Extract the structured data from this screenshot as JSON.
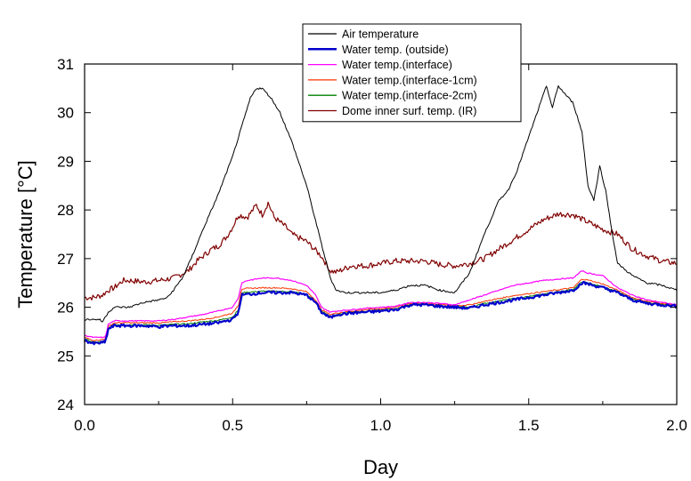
{
  "chart_data": {
    "type": "line",
    "title": "",
    "xlabel": "Day",
    "ylabel": "Temperature [°C]",
    "xlim": [
      0.0,
      2.0
    ],
    "ylim": [
      24,
      31
    ],
    "xticks": [
      0.0,
      0.5,
      1.0,
      1.5,
      2.0
    ],
    "xtick_labels": [
      "0.0",
      "0.5",
      "1.0",
      "1.5",
      "2.0"
    ],
    "yticks": [
      24,
      25,
      26,
      27,
      28,
      29,
      30,
      31
    ],
    "ytick_labels": [
      "24",
      "25",
      "26",
      "27",
      "28",
      "29",
      "30",
      "31"
    ],
    "grid": false,
    "legend_position": "top-center",
    "series": [
      {
        "name": "Air temperature",
        "color": "#000000",
        "width": 1,
        "x": [
          0.0,
          0.05,
          0.06,
          0.08,
          0.1,
          0.12,
          0.15,
          0.2,
          0.25,
          0.28,
          0.3,
          0.33,
          0.36,
          0.4,
          0.45,
          0.5,
          0.54,
          0.56,
          0.58,
          0.6,
          0.63,
          0.66,
          0.7,
          0.75,
          0.8,
          0.83,
          0.85,
          0.88,
          0.9,
          0.95,
          1.0,
          1.05,
          1.1,
          1.15,
          1.2,
          1.25,
          1.3,
          1.35,
          1.4,
          1.43,
          1.46,
          1.5,
          1.54,
          1.56,
          1.58,
          1.6,
          1.62,
          1.65,
          1.68,
          1.7,
          1.72,
          1.74,
          1.76,
          1.78,
          1.8,
          1.85,
          1.9,
          1.95,
          2.0
        ],
        "y": [
          25.75,
          25.75,
          25.7,
          25.9,
          26.0,
          26.0,
          26.0,
          26.1,
          26.15,
          26.2,
          26.35,
          26.6,
          27.0,
          27.6,
          28.3,
          29.1,
          29.9,
          30.3,
          30.5,
          30.5,
          30.3,
          30.0,
          29.4,
          28.5,
          27.3,
          26.6,
          26.35,
          26.3,
          26.3,
          26.3,
          26.3,
          26.35,
          26.45,
          26.45,
          26.35,
          26.3,
          26.7,
          27.5,
          28.2,
          28.4,
          28.8,
          29.5,
          30.2,
          30.55,
          30.1,
          30.55,
          30.4,
          30.2,
          29.6,
          28.5,
          28.2,
          28.9,
          28.4,
          27.6,
          26.9,
          26.65,
          26.5,
          26.45,
          26.35
        ]
      },
      {
        "name": "Water temp. (outside)",
        "color": "#0000cc",
        "width": 2.2,
        "x": [
          0.0,
          0.03,
          0.07,
          0.08,
          0.1,
          0.15,
          0.2,
          0.25,
          0.3,
          0.35,
          0.4,
          0.45,
          0.5,
          0.52,
          0.53,
          0.6,
          0.65,
          0.7,
          0.75,
          0.78,
          0.8,
          0.83,
          0.85,
          0.9,
          0.95,
          1.0,
          1.05,
          1.1,
          1.15,
          1.2,
          1.25,
          1.3,
          1.35,
          1.4,
          1.45,
          1.5,
          1.55,
          1.6,
          1.65,
          1.68,
          1.7,
          1.75,
          1.8,
          1.85,
          1.9,
          1.95,
          2.0
        ],
        "y": [
          25.32,
          25.25,
          25.28,
          25.55,
          25.62,
          25.62,
          25.62,
          25.6,
          25.62,
          25.62,
          25.65,
          25.68,
          25.75,
          25.9,
          26.25,
          26.3,
          26.3,
          26.3,
          26.25,
          26.1,
          25.9,
          25.78,
          25.85,
          25.88,
          25.9,
          25.92,
          25.95,
          26.05,
          26.05,
          26.02,
          26.0,
          25.98,
          26.05,
          26.1,
          26.15,
          26.2,
          26.25,
          26.3,
          26.35,
          26.5,
          26.48,
          26.4,
          26.3,
          26.15,
          26.08,
          26.05,
          26.02
        ]
      },
      {
        "name": "Water temp.(interface)",
        "color": "#ff00ff",
        "width": 1.2,
        "x": [
          0.0,
          0.03,
          0.07,
          0.08,
          0.1,
          0.15,
          0.2,
          0.25,
          0.3,
          0.35,
          0.4,
          0.45,
          0.5,
          0.52,
          0.53,
          0.55,
          0.6,
          0.65,
          0.7,
          0.75,
          0.78,
          0.8,
          0.83,
          0.85,
          0.9,
          0.95,
          1.0,
          1.05,
          1.1,
          1.15,
          1.2,
          1.25,
          1.3,
          1.35,
          1.4,
          1.45,
          1.5,
          1.55,
          1.6,
          1.65,
          1.68,
          1.7,
          1.75,
          1.8,
          1.85,
          1.9,
          1.95,
          2.0
        ],
        "y": [
          25.42,
          25.38,
          25.38,
          25.65,
          25.72,
          25.72,
          25.72,
          25.72,
          25.75,
          25.8,
          25.85,
          25.92,
          26.0,
          26.2,
          26.5,
          26.55,
          26.6,
          26.6,
          26.55,
          26.45,
          26.25,
          26.0,
          25.9,
          25.92,
          25.95,
          25.98,
          26.0,
          26.02,
          26.1,
          26.1,
          26.08,
          26.05,
          26.15,
          26.25,
          26.35,
          26.45,
          26.5,
          26.55,
          26.58,
          26.6,
          26.75,
          26.7,
          26.65,
          26.4,
          26.25,
          26.15,
          26.1,
          26.05
        ]
      },
      {
        "name": "Water temp.(interface-1cm)",
        "color": "#ff3300",
        "width": 1,
        "x": [
          0.0,
          0.03,
          0.07,
          0.08,
          0.1,
          0.15,
          0.2,
          0.25,
          0.3,
          0.35,
          0.4,
          0.45,
          0.5,
          0.52,
          0.53,
          0.6,
          0.65,
          0.7,
          0.75,
          0.78,
          0.8,
          0.83,
          0.85,
          0.9,
          0.95,
          1.0,
          1.05,
          1.1,
          1.15,
          1.2,
          1.25,
          1.3,
          1.35,
          1.4,
          1.45,
          1.5,
          1.55,
          1.6,
          1.65,
          1.68,
          1.7,
          1.75,
          1.8,
          1.85,
          1.9,
          1.95,
          2.0
        ],
        "y": [
          25.38,
          25.32,
          25.34,
          25.6,
          25.68,
          25.68,
          25.68,
          25.68,
          25.7,
          25.72,
          25.75,
          25.8,
          25.88,
          26.05,
          26.38,
          26.4,
          26.4,
          26.38,
          26.32,
          26.15,
          25.95,
          25.85,
          25.88,
          25.92,
          25.95,
          25.97,
          26.0,
          26.08,
          26.08,
          26.06,
          26.03,
          26.05,
          26.12,
          26.18,
          26.24,
          26.28,
          26.32,
          26.36,
          26.4,
          26.58,
          26.56,
          26.48,
          26.35,
          26.2,
          26.12,
          26.08,
          26.05
        ]
      },
      {
        "name": "Water temp.(interface-2cm)",
        "color": "#008000",
        "width": 1,
        "x": [
          0.0,
          0.03,
          0.07,
          0.08,
          0.1,
          0.15,
          0.2,
          0.25,
          0.3,
          0.35,
          0.4,
          0.45,
          0.5,
          0.52,
          0.53,
          0.6,
          0.65,
          0.7,
          0.75,
          0.78,
          0.8,
          0.83,
          0.85,
          0.9,
          0.95,
          1.0,
          1.05,
          1.1,
          1.15,
          1.2,
          1.25,
          1.3,
          1.35,
          1.4,
          1.45,
          1.5,
          1.55,
          1.6,
          1.65,
          1.68,
          1.7,
          1.75,
          1.8,
          1.85,
          1.9,
          1.95,
          2.0
        ],
        "y": [
          25.35,
          25.28,
          25.3,
          25.57,
          25.64,
          25.64,
          25.64,
          25.63,
          25.65,
          25.66,
          25.7,
          25.73,
          25.8,
          25.95,
          26.3,
          26.33,
          26.33,
          26.32,
          26.27,
          26.1,
          25.92,
          25.8,
          25.85,
          25.9,
          25.92,
          25.94,
          25.97,
          26.06,
          26.06,
          26.03,
          26.01,
          26.0,
          26.08,
          26.13,
          26.18,
          26.22,
          26.27,
          26.32,
          26.37,
          26.52,
          26.5,
          26.42,
          26.32,
          26.17,
          26.1,
          26.06,
          26.03
        ]
      },
      {
        "name": "Dome inner surf. temp. (IR)",
        "color": "#800000",
        "width": 1.2,
        "x": [
          0.0,
          0.03,
          0.06,
          0.08,
          0.1,
          0.13,
          0.15,
          0.2,
          0.25,
          0.3,
          0.35,
          0.38,
          0.4,
          0.43,
          0.45,
          0.48,
          0.5,
          0.52,
          0.55,
          0.58,
          0.6,
          0.62,
          0.64,
          0.66,
          0.68,
          0.7,
          0.75,
          0.8,
          0.83,
          0.85,
          0.9,
          0.95,
          1.0,
          1.05,
          1.1,
          1.15,
          1.2,
          1.25,
          1.3,
          1.35,
          1.4,
          1.45,
          1.5,
          1.55,
          1.6,
          1.65,
          1.7,
          1.75,
          1.8,
          1.85,
          1.9,
          1.95,
          2.0
        ],
        "y": [
          26.2,
          26.2,
          26.25,
          26.35,
          26.4,
          26.55,
          26.55,
          26.52,
          26.55,
          26.6,
          26.75,
          26.95,
          27.05,
          27.2,
          27.25,
          27.45,
          27.65,
          27.9,
          27.85,
          28.1,
          27.9,
          28.15,
          27.85,
          27.75,
          27.65,
          27.5,
          27.35,
          27.05,
          26.75,
          26.72,
          26.85,
          26.85,
          26.9,
          26.95,
          26.95,
          26.95,
          26.88,
          26.85,
          26.9,
          27.0,
          27.2,
          27.4,
          27.6,
          27.8,
          27.92,
          27.9,
          27.75,
          27.6,
          27.5,
          27.2,
          27.05,
          26.95,
          26.9
        ]
      }
    ]
  }
}
